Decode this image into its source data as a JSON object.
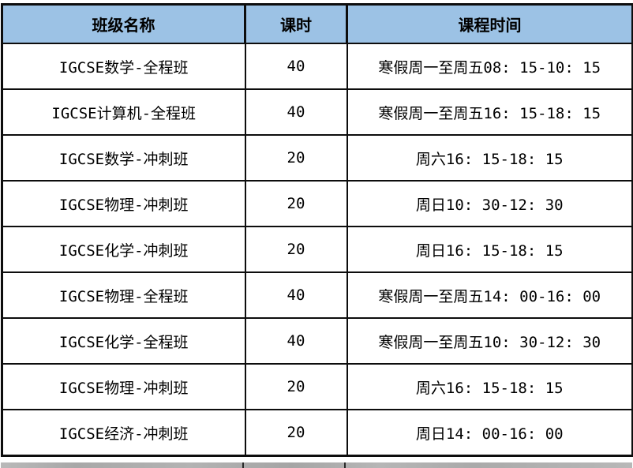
{
  "colors": {
    "header_bg": "#9CC2E5",
    "border": "#0d0d0d",
    "text": "#000000",
    "row_bg": "#ffffff"
  },
  "table": {
    "columns": [
      {
        "label": "班级名称"
      },
      {
        "label": "课时"
      },
      {
        "label": "课程时间"
      }
    ],
    "rows": [
      {
        "class_name": "IGCSE数学-全程班",
        "hours": "40",
        "schedule": "寒假周一至周五08: 15-10: 15"
      },
      {
        "class_name": "IGCSE计算机-全程班",
        "hours": "40",
        "schedule": "寒假周一至周五16: 15-18: 15"
      },
      {
        "class_name": "IGCSE数学-冲刺班",
        "hours": "20",
        "schedule": "周六16: 15-18: 15"
      },
      {
        "class_name": "IGCSE物理-冲刺班",
        "hours": "20",
        "schedule": "周日10: 30-12: 30"
      },
      {
        "class_name": "IGCSE化学-冲刺班",
        "hours": "20",
        "schedule": "周日16: 15-18: 15"
      },
      {
        "class_name": "IGCSE物理-全程班",
        "hours": "40",
        "schedule": "寒假周一至周五14: 00-16: 00"
      },
      {
        "class_name": "IGCSE化学-全程班",
        "hours": "40",
        "schedule": "寒假周一至周五10: 30-12: 30"
      },
      {
        "class_name": "IGCSE物理-冲刺班",
        "hours": "20",
        "schedule": "周六16: 15-18: 15"
      },
      {
        "class_name": "IGCSE经济-冲刺班",
        "hours": "20",
        "schedule": "周日14: 00-16: 00"
      }
    ]
  },
  "chart_data": {
    "type": "table",
    "title": "",
    "columns": [
      "班级名称",
      "课时",
      "课程时间"
    ],
    "rows": [
      [
        "IGCSE数学-全程班",
        40,
        "寒假周一至周五08: 15-10: 15"
      ],
      [
        "IGCSE计算机-全程班",
        40,
        "寒假周一至周五16: 15-18: 15"
      ],
      [
        "IGCSE数学-冲刺班",
        20,
        "周六16: 15-18: 15"
      ],
      [
        "IGCSE物理-冲刺班",
        20,
        "周日10: 30-12: 30"
      ],
      [
        "IGCSE化学-冲刺班",
        20,
        "周日16: 15-18: 15"
      ],
      [
        "IGCSE物理-全程班",
        40,
        "寒假周一至周五14: 00-16: 00"
      ],
      [
        "IGCSE化学-全程班",
        40,
        "寒假周一至周五10: 30-12: 30"
      ],
      [
        "IGCSE物理-冲刺班",
        20,
        "周六16: 15-18: 15"
      ],
      [
        "IGCSE经济-冲刺班",
        20,
        "周日14: 00-16: 00"
      ]
    ]
  }
}
